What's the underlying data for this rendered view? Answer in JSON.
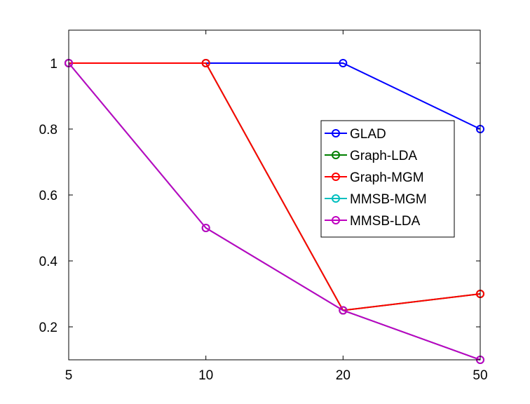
{
  "chart_data": {
    "type": "line",
    "categories": [
      "5",
      "10",
      "20",
      "50"
    ],
    "ylim": [
      0.1,
      1.1
    ],
    "yticks": [
      0.2,
      0.4,
      0.6,
      0.8,
      1
    ],
    "ytick_labels": [
      "0.2",
      "0.4",
      "0.6",
      "0.8",
      "1"
    ],
    "grid": false,
    "legend_position": "right",
    "marker": "circle",
    "series": [
      {
        "name": "GLAD",
        "color": "#0000ff",
        "values": [
          1,
          1,
          1,
          0.8
        ]
      },
      {
        "name": "Graph-LDA",
        "color": "#008000",
        "values": [
          1,
          1,
          0.25,
          0.3
        ]
      },
      {
        "name": "Graph-MGM",
        "color": "#ff0000",
        "values": [
          1,
          1,
          0.25,
          0.3
        ]
      },
      {
        "name": "MMSB-MGM",
        "color": "#00bfbf",
        "values": [
          1,
          0.5,
          0.25,
          0.1
        ]
      },
      {
        "name": "MMSB-LDA",
        "color": "#bf00bf",
        "values": [
          1,
          0.5,
          0.25,
          0.1
        ]
      }
    ]
  }
}
